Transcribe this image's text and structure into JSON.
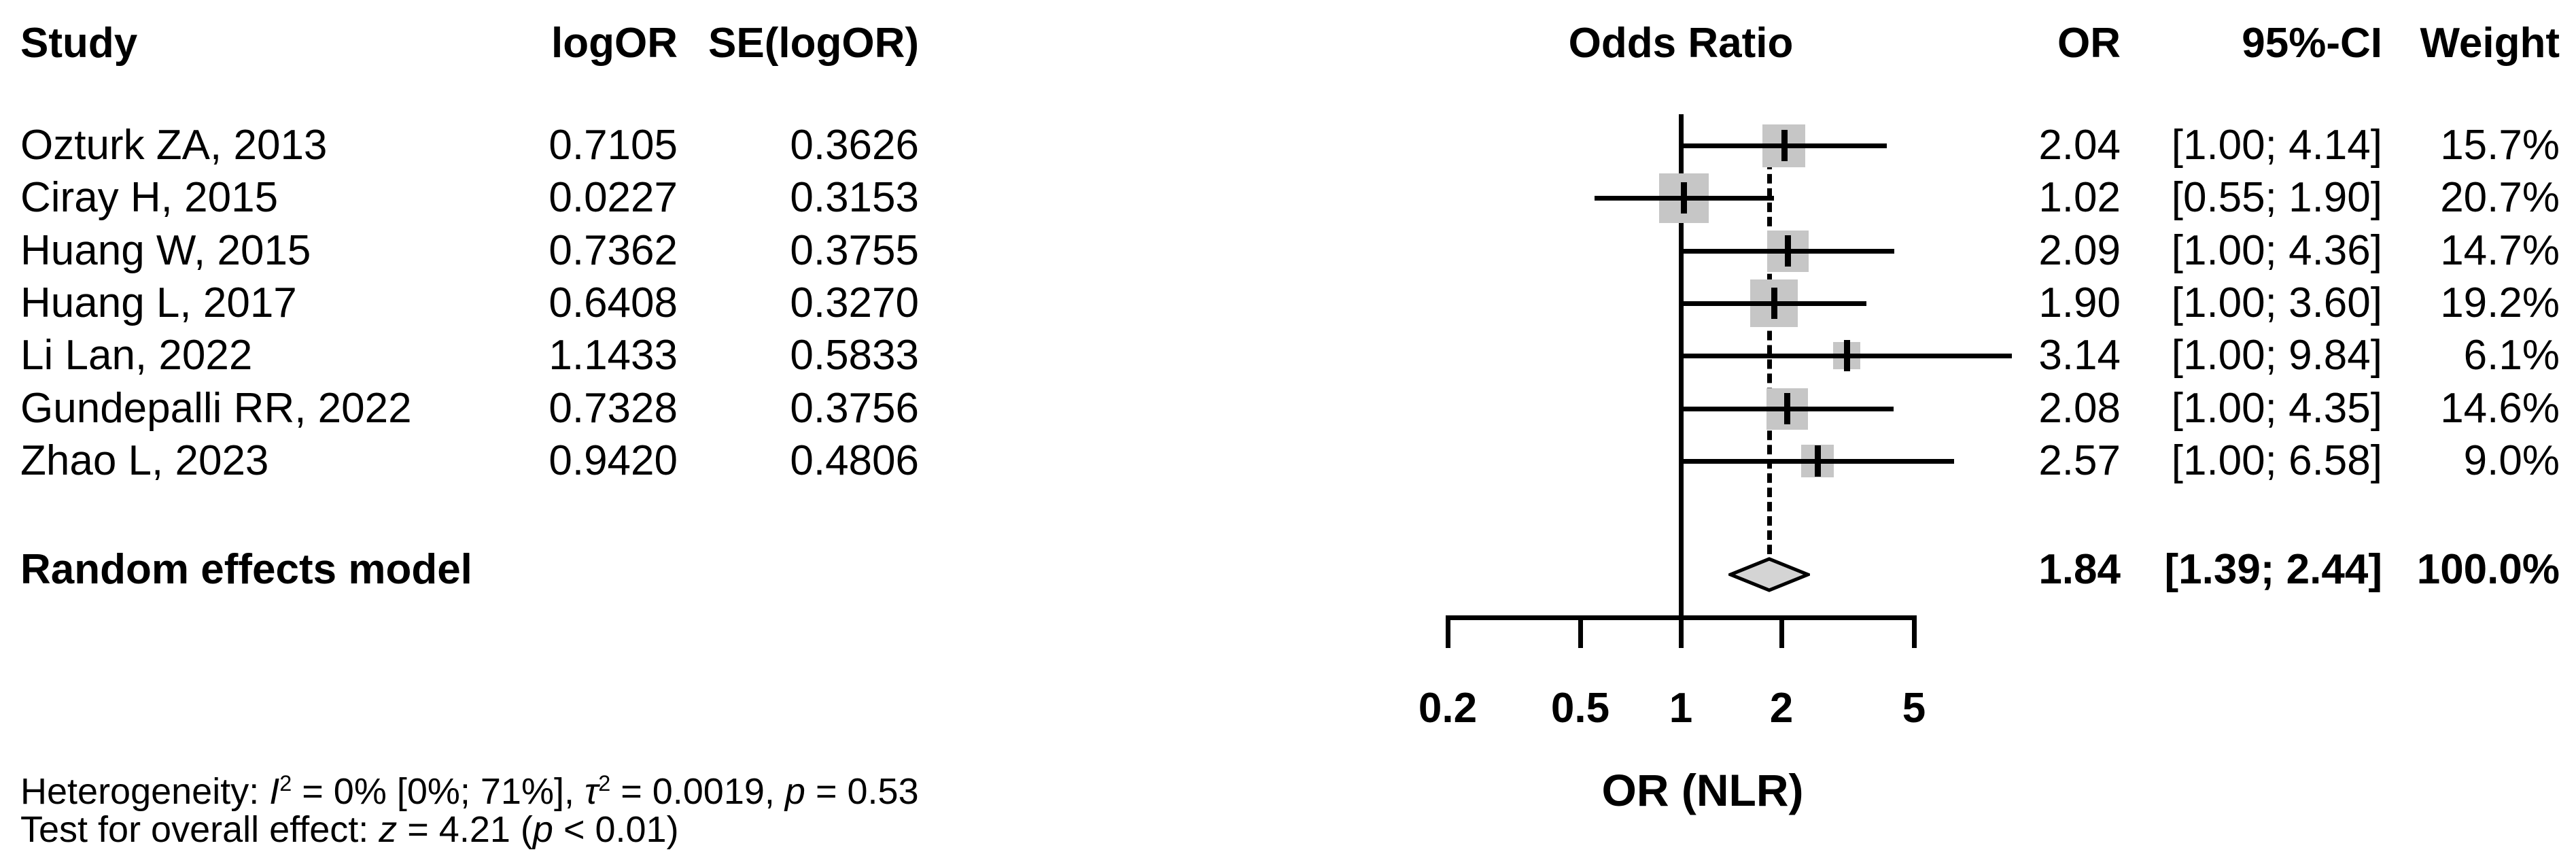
{
  "table": {
    "headers": {
      "study": "Study",
      "logor": "logOR",
      "se": "SE(logOR)",
      "odds_ratio": "Odds Ratio",
      "or": "OR",
      "ci": "95%-CI",
      "weight": "Weight"
    },
    "rows": [
      {
        "study": "Ozturk ZA, 2013",
        "logor": "0.7105",
        "se": "0.3626",
        "or": "2.04",
        "ci": "[1.00; 4.14]",
        "weight": "15.7%"
      },
      {
        "study": "Ciray H, 2015",
        "logor": "0.0227",
        "se": "0.3153",
        "or": "1.02",
        "ci": "[0.55; 1.90]",
        "weight": "20.7%"
      },
      {
        "study": "Huang W, 2015",
        "logor": "0.7362",
        "se": "0.3755",
        "or": "2.09",
        "ci": "[1.00; 4.36]",
        "weight": "14.7%"
      },
      {
        "study": "Huang L, 2017",
        "logor": "0.6408",
        "se": "0.3270",
        "or": "1.90",
        "ci": "[1.00; 3.60]",
        "weight": "19.2%"
      },
      {
        "study": "Li Lan, 2022",
        "logor": "1.1433",
        "se": "0.5833",
        "or": "3.14",
        "ci": "[1.00; 9.84]",
        "weight": "6.1%"
      },
      {
        "study": "Gundepalli RR, 2022",
        "logor": "0.7328",
        "se": "0.3756",
        "or": "2.08",
        "ci": "[1.00; 4.35]",
        "weight": "14.6%"
      },
      {
        "study": "Zhao L, 2023",
        "logor": "0.9420",
        "se": "0.4806",
        "or": "2.57",
        "ci": "[1.00; 6.58]",
        "weight": "9.0%"
      }
    ],
    "summary": {
      "label": "Random effects model",
      "or": "1.84",
      "ci": "[1.39; 2.44]",
      "weight": "100.0%"
    }
  },
  "footer": {
    "heterogeneity_segments": [
      {
        "text": "Heterogeneity: "
      },
      {
        "text": "I",
        "style": "italic"
      },
      {
        "text": "2",
        "style": "sup"
      },
      {
        "text": " = 0% [0%; 71%], "
      },
      {
        "text": "τ",
        "style": "italic"
      },
      {
        "text": "2",
        "style": "sup"
      },
      {
        "text": " = 0.0019, "
      },
      {
        "text": "p",
        "style": "italic"
      },
      {
        "text": " = 0.53"
      }
    ],
    "test_segments": [
      {
        "text": "Test for overall effect: "
      },
      {
        "text": "z",
        "style": "italic"
      },
      {
        "text": " = 4.21 ("
      },
      {
        "text": "p",
        "style": "italic"
      },
      {
        "text": " < 0.01)"
      }
    ]
  },
  "chart_data": {
    "type": "forest",
    "title": "Odds Ratio",
    "xlabel": "OR (NLR)",
    "x_scale": "log",
    "x_range": [
      0.2,
      5
    ],
    "x_ticks": [
      0.2,
      0.5,
      1,
      2,
      5
    ],
    "x_tick_labels": [
      "0.2",
      "0.5",
      "1",
      "2",
      "5"
    ],
    "null_value": 1,
    "pooled_line_value": 1.84,
    "square_color": "#c6c6c6",
    "diamond_color": "#d4d4d4",
    "studies": [
      {
        "name": "Ozturk ZA, 2013",
        "logor": 0.7105,
        "se_logor": 0.3626,
        "or": 2.04,
        "ci_low": 1.0,
        "ci_high": 4.14,
        "weight_pct": 15.7
      },
      {
        "name": "Ciray H, 2015",
        "logor": 0.0227,
        "se_logor": 0.3153,
        "or": 1.02,
        "ci_low": 0.55,
        "ci_high": 1.9,
        "weight_pct": 20.7
      },
      {
        "name": "Huang W, 2015",
        "logor": 0.7362,
        "se_logor": 0.3755,
        "or": 2.09,
        "ci_low": 1.0,
        "ci_high": 4.36,
        "weight_pct": 14.7
      },
      {
        "name": "Huang L, 2017",
        "logor": 0.6408,
        "se_logor": 0.327,
        "or": 1.9,
        "ci_low": 1.0,
        "ci_high": 3.6,
        "weight_pct": 19.2
      },
      {
        "name": "Li Lan, 2022",
        "logor": 1.1433,
        "se_logor": 0.5833,
        "or": 3.14,
        "ci_low": 1.0,
        "ci_high": 9.84,
        "weight_pct": 6.1
      },
      {
        "name": "Gundepalli RR, 2022",
        "logor": 0.7328,
        "se_logor": 0.3756,
        "or": 2.08,
        "ci_low": 1.0,
        "ci_high": 4.35,
        "weight_pct": 14.6
      },
      {
        "name": "Zhao L, 2023",
        "logor": 0.942,
        "se_logor": 0.4806,
        "or": 2.57,
        "ci_low": 1.0,
        "ci_high": 6.58,
        "weight_pct": 9.0
      }
    ],
    "pooled": {
      "label": "Random effects model",
      "or": 1.84,
      "ci_low": 1.39,
      "ci_high": 2.44,
      "weight_pct": 100.0
    },
    "heterogeneity": {
      "I2": "0%",
      "I2_ci": "[0%; 71%]",
      "tau2": 0.0019,
      "p": 0.53
    },
    "overall_effect_test": {
      "z": 4.21,
      "p": "< 0.01"
    }
  }
}
